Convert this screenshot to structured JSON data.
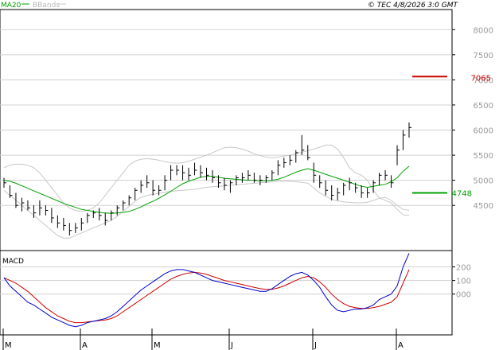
{
  "header": {
    "legend_ma": "MA20",
    "legend_bb": "BBands",
    "timestamp": "© TEC 4/8/2026 3:0 GMT"
  },
  "colors": {
    "price_bars": "#000000",
    "ma20": "#00a000",
    "bbands": "#c8c8c8",
    "macd_line": "#0000cc",
    "macd_signal": "#cc0000",
    "resistance": "#cc0000",
    "support": "#00a000",
    "grid": "#d0d0d0"
  },
  "chart_data": [
    {
      "type": "line",
      "panel": "price",
      "ylim": [
        3600,
        8400
      ],
      "yticks": [
        4500,
        5000,
        5500,
        6000,
        6500,
        7000,
        7500,
        8000
      ],
      "ytick_labels": [
        "4500",
        "5000",
        "5500",
        "6000",
        "6500",
        "7000",
        "7500",
        "8000"
      ],
      "months": [
        "M",
        "A",
        "M",
        "J",
        "J",
        "A"
      ],
      "grid": true,
      "series": [
        {
          "name": "MA20",
          "values": [
            5000,
            4980,
            4940,
            4890,
            4840,
            4790,
            4740,
            4690,
            4640,
            4590,
            4540,
            4500,
            4460,
            4420,
            4400,
            4380,
            4360,
            4350,
            4340,
            4350,
            4360,
            4380,
            4420,
            4470,
            4530,
            4580,
            4640,
            4710,
            4780,
            4860,
            4930,
            4980,
            5020,
            5060,
            5080,
            5080,
            5060,
            5040,
            5030,
            5020,
            5010,
            5000,
            5000,
            4990,
            4990,
            5000,
            5020,
            5060,
            5110,
            5160,
            5200,
            5230,
            5200,
            5160,
            5120,
            5080,
            5040,
            5000,
            4960,
            4920,
            4880,
            4860,
            4880,
            4900,
            4920,
            4970,
            5050,
            5180,
            5280
          ]
        },
        {
          "name": "Upper BBand",
          "values": [
            5250,
            5300,
            5320,
            5320,
            5300,
            5250,
            5150,
            5000,
            4850,
            4700,
            4550,
            4450,
            4400,
            4380,
            4400,
            4450,
            4550,
            4700,
            4850,
            5000,
            5150,
            5300,
            5380,
            5420,
            5430,
            5420,
            5400,
            5370,
            5350,
            5340,
            5350,
            5380,
            5420,
            5460,
            5500,
            5550,
            5600,
            5650,
            5660,
            5650,
            5620,
            5580,
            5530,
            5490,
            5460,
            5450,
            5460,
            5480,
            5500,
            5530,
            5560,
            5590,
            5620,
            5660,
            5700,
            5700,
            5620,
            5450,
            5250,
            5150,
            5100,
            5000,
            4800,
            4650,
            4600,
            4550,
            4420,
            4310,
            4300
          ]
        },
        {
          "name": "Lower BBand",
          "values": [
            4800,
            4700,
            4600,
            4500,
            4400,
            4300,
            4200,
            4100,
            4000,
            3900,
            3850,
            3850,
            3900,
            3950,
            4000,
            4050,
            4100,
            4150,
            4200,
            4280,
            4380,
            4480,
            4580,
            4660,
            4700,
            4720,
            4740,
            4760,
            4780,
            4790,
            4800,
            4810,
            4820,
            4840,
            4860,
            4870,
            4880,
            4890,
            4900,
            4910,
            4920,
            4930,
            4940,
            4950,
            4960,
            4970,
            4980,
            4980,
            4980,
            4970,
            4960,
            4940,
            4850,
            4750,
            4680,
            4620,
            4590,
            4570,
            4560,
            4550,
            4550,
            4560,
            4600,
            4640,
            4660,
            4600,
            4500,
            4420,
            4400
          ]
        }
      ],
      "ohlc": [
        {
          "h": 5050,
          "l": 4850,
          "c": 4950
        },
        {
          "h": 4900,
          "l": 4650,
          "c": 4700
        },
        {
          "h": 4750,
          "l": 4450,
          "c": 4500
        },
        {
          "h": 4650,
          "l": 4380,
          "c": 4550
        },
        {
          "h": 4600,
          "l": 4400,
          "c": 4450
        },
        {
          "h": 4500,
          "l": 4250,
          "c": 4350
        },
        {
          "h": 4600,
          "l": 4300,
          "c": 4450
        },
        {
          "h": 4500,
          "l": 4300,
          "c": 4400
        },
        {
          "h": 4450,
          "l": 4150,
          "c": 4250
        },
        {
          "h": 4300,
          "l": 4050,
          "c": 4150
        },
        {
          "h": 4250,
          "l": 4000,
          "c": 4100
        },
        {
          "h": 4150,
          "l": 3900,
          "c": 4000
        },
        {
          "h": 4150,
          "l": 3950,
          "c": 4050
        },
        {
          "h": 4250,
          "l": 4000,
          "c": 4150
        },
        {
          "h": 4350,
          "l": 4150,
          "c": 4300
        },
        {
          "h": 4400,
          "l": 4250,
          "c": 4350
        },
        {
          "h": 4450,
          "l": 4200,
          "c": 4300
        },
        {
          "h": 4350,
          "l": 4100,
          "c": 4200
        },
        {
          "h": 4400,
          "l": 4200,
          "c": 4350
        },
        {
          "h": 4500,
          "l": 4300,
          "c": 4450
        },
        {
          "h": 4600,
          "l": 4400,
          "c": 4550
        },
        {
          "h": 4700,
          "l": 4500,
          "c": 4650
        },
        {
          "h": 4850,
          "l": 4600,
          "c": 4800
        },
        {
          "h": 5000,
          "l": 4750,
          "c": 4900
        },
        {
          "h": 5100,
          "l": 4850,
          "c": 4950
        },
        {
          "h": 5000,
          "l": 4700,
          "c": 4800
        },
        {
          "h": 4900,
          "l": 4700,
          "c": 4800
        },
        {
          "h": 5100,
          "l": 4800,
          "c": 5000
        },
        {
          "h": 5300,
          "l": 5000,
          "c": 5200
        },
        {
          "h": 5300,
          "l": 5100,
          "c": 5200
        },
        {
          "h": 5300,
          "l": 5000,
          "c": 5150
        },
        {
          "h": 5250,
          "l": 5000,
          "c": 5100
        },
        {
          "h": 5350,
          "l": 5100,
          "c": 5200
        },
        {
          "h": 5300,
          "l": 5050,
          "c": 5150
        },
        {
          "h": 5250,
          "l": 5000,
          "c": 5100
        },
        {
          "h": 5200,
          "l": 4950,
          "c": 5050
        },
        {
          "h": 5100,
          "l": 4850,
          "c": 4950
        },
        {
          "h": 5050,
          "l": 4800,
          "c": 4900
        },
        {
          "h": 5000,
          "l": 4750,
          "c": 4950
        },
        {
          "h": 5100,
          "l": 4900,
          "c": 5050
        },
        {
          "h": 5150,
          "l": 4950,
          "c": 5050
        },
        {
          "h": 5200,
          "l": 5000,
          "c": 5100
        },
        {
          "h": 5150,
          "l": 4950,
          "c": 5000
        },
        {
          "h": 5100,
          "l": 4900,
          "c": 5000
        },
        {
          "h": 5100,
          "l": 4950,
          "c": 5050
        },
        {
          "h": 5200,
          "l": 5000,
          "c": 5150
        },
        {
          "h": 5400,
          "l": 5100,
          "c": 5300
        },
        {
          "h": 5450,
          "l": 5250,
          "c": 5350
        },
        {
          "h": 5500,
          "l": 5300,
          "c": 5400
        },
        {
          "h": 5600,
          "l": 5350,
          "c": 5550
        },
        {
          "h": 5900,
          "l": 5500,
          "c": 5600
        },
        {
          "h": 5700,
          "l": 5400,
          "c": 5450
        },
        {
          "h": 5350,
          "l": 4950,
          "c": 5100
        },
        {
          "h": 5100,
          "l": 4850,
          "c": 4950
        },
        {
          "h": 5000,
          "l": 4700,
          "c": 4800
        },
        {
          "h": 4900,
          "l": 4600,
          "c": 4700
        },
        {
          "h": 4850,
          "l": 4600,
          "c": 4750
        },
        {
          "h": 4950,
          "l": 4700,
          "c": 4900
        },
        {
          "h": 5050,
          "l": 4800,
          "c": 4950
        },
        {
          "h": 4950,
          "l": 4750,
          "c": 4850
        },
        {
          "h": 4900,
          "l": 4650,
          "c": 4750
        },
        {
          "h": 4850,
          "l": 4650,
          "c": 4750
        },
        {
          "h": 5000,
          "l": 4750,
          "c": 4950
        },
        {
          "h": 5150,
          "l": 4900,
          "c": 5100
        },
        {
          "h": 5200,
          "l": 5000,
          "c": 5100
        },
        {
          "h": 5100,
          "l": 4850,
          "c": 4950
        },
        {
          "h": 5700,
          "l": 5300,
          "c": 5600
        },
        {
          "h": 6000,
          "l": 5600,
          "c": 5900
        },
        {
          "h": 6150,
          "l": 5850,
          "c": 6050
        }
      ],
      "annotations": [
        {
          "label": "7065",
          "value": 7065,
          "color": "#cc0000"
        },
        {
          "label": "4748",
          "value": 4748,
          "color": "#00a000"
        }
      ]
    },
    {
      "type": "line",
      "panel": "macd",
      "title": "MACD",
      "ylim": [
        -300,
        320
      ],
      "yticks": [
        200,
        100,
        0
      ],
      "ytick_labels": [
        "200",
        "100",
        "000"
      ],
      "series": [
        {
          "name": "MACD",
          "values": [
            120,
            60,
            20,
            -20,
            -60,
            -80,
            -110,
            -140,
            -170,
            -190,
            -210,
            -230,
            -240,
            -230,
            -210,
            -200,
            -190,
            -180,
            -160,
            -130,
            -90,
            -50,
            -10,
            30,
            60,
            90,
            120,
            150,
            170,
            180,
            180,
            170,
            160,
            140,
            120,
            100,
            90,
            80,
            70,
            60,
            50,
            40,
            30,
            20,
            20,
            40,
            70,
            100,
            130,
            150,
            160,
            140,
            100,
            50,
            -20,
            -80,
            -120,
            -130,
            -120,
            -110,
            -110,
            -100,
            -80,
            -40,
            -20,
            0,
            60,
            200,
            300
          ]
        },
        {
          "name": "Signal",
          "values": [
            120,
            100,
            80,
            50,
            20,
            -20,
            -60,
            -100,
            -130,
            -160,
            -180,
            -200,
            -210,
            -210,
            -205,
            -200,
            -195,
            -190,
            -180,
            -160,
            -130,
            -100,
            -70,
            -40,
            -10,
            20,
            50,
            80,
            110,
            130,
            145,
            155,
            160,
            155,
            145,
            130,
            115,
            100,
            90,
            80,
            70,
            60,
            50,
            40,
            35,
            35,
            45,
            60,
            80,
            100,
            120,
            130,
            120,
            90,
            50,
            0,
            -40,
            -70,
            -90,
            -100,
            -105,
            -105,
            -100,
            -90,
            -75,
            -60,
            -20,
            80,
            180
          ]
        }
      ]
    }
  ]
}
